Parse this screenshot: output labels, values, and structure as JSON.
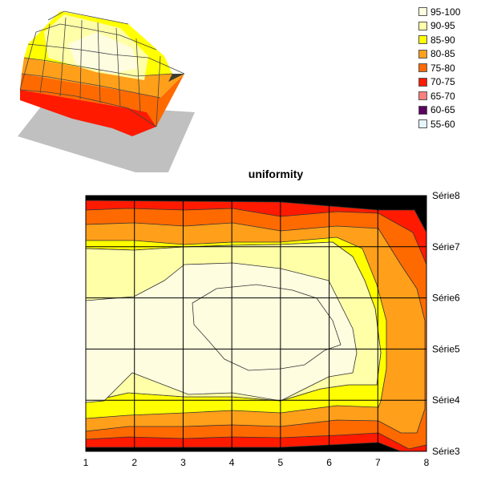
{
  "legend": {
    "items": [
      {
        "label": "95-100",
        "color": "#fffde0"
      },
      {
        "label": "90-95",
        "color": "#ffffa8"
      },
      {
        "label": "85-90",
        "color": "#ffff00"
      },
      {
        "label": "80-85",
        "color": "#ff9f1a"
      },
      {
        "label": "75-80",
        "color": "#ff6a00"
      },
      {
        "label": "70-75",
        "color": "#ff1a00"
      },
      {
        "label": "65-70",
        "color": "#ff7f7f"
      },
      {
        "label": "60-65",
        "color": "#5a0060"
      },
      {
        "label": "55-60",
        "color": "#e6f4ff"
      }
    ]
  },
  "chart_data": [
    {
      "type": "surface3d",
      "title": "",
      "note": "3D surface view of the same uniformity data"
    },
    {
      "type": "heatmap",
      "title": "uniformity",
      "x": [
        1,
        2,
        3,
        4,
        5,
        6,
        7,
        8
      ],
      "xlim": [
        1,
        8
      ],
      "y_labels": [
        "Série3",
        "Série4",
        "Série5",
        "Série6",
        "Série7",
        "Série8"
      ],
      "bands": [
        "95-100",
        "90-95",
        "85-90",
        "80-85",
        "75-80",
        "70-75",
        "65-70",
        "60-65",
        "55-60"
      ],
      "grid": true
    }
  ]
}
